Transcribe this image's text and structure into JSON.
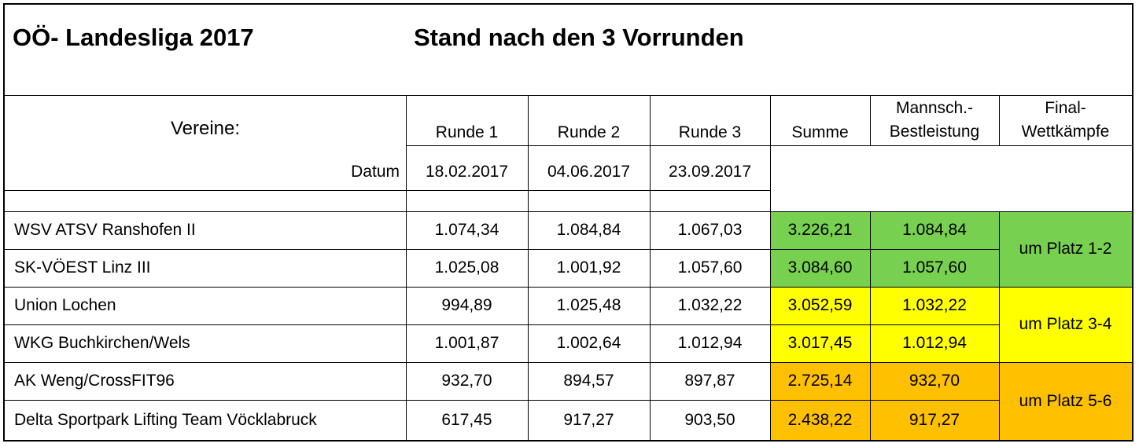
{
  "title": "OÖ- Landesliga 2017",
  "subtitle": "Stand nach den 3 Vorrunden",
  "header": {
    "vereine": "Vereine:",
    "runde1": "Runde 1",
    "runde2": "Runde 2",
    "runde3": "Runde 3",
    "summe": "Summe",
    "mannsch_l1": "Mannsch.-",
    "mannsch_l2": "Bestleistung",
    "final_l1": "Final-",
    "final_l2": "Wettkämpfe",
    "datum_label": "Datum",
    "datum1": "18.02.2017",
    "datum2": "04.06.2017",
    "datum3": "23.09.2017"
  },
  "colors": {
    "green": "#77d04f",
    "yellow": "#ffff00",
    "orange": "#ffc000"
  },
  "rows": [
    {
      "verein": "WSV ATSV Ranshofen II",
      "r1": "1.074,34",
      "r2": "1.084,84",
      "r3": "1.067,03",
      "summe": "3.226,21",
      "best": "1.084,84"
    },
    {
      "verein": "SK-VÖEST Linz III",
      "r1": "1.025,08",
      "r2": "1.001,92",
      "r3": "1.057,60",
      "summe": "3.084,60",
      "best": "1.057,60"
    },
    {
      "verein": "Union Lochen",
      "r1": "994,89",
      "r2": "1.025,48",
      "r3": "1.032,22",
      "summe": "3.052,59",
      "best": "1.032,22"
    },
    {
      "verein": "WKG Buchkirchen/Wels",
      "r1": "1.001,87",
      "r2": "1.002,64",
      "r3": "1.012,94",
      "summe": "3.017,45",
      "best": "1.012,94"
    },
    {
      "verein": "AK Weng/CrossFIT96",
      "r1": "932,70",
      "r2": "894,57",
      "r3": "897,87",
      "summe": "2.725,14",
      "best": "932,70"
    },
    {
      "verein": "Delta Sportpark Lifting Team Vöcklabruck",
      "r1": "617,45",
      "r2": "917,27",
      "r3": "903,50",
      "summe": "2.438,22",
      "best": "917,27"
    }
  ],
  "finals": [
    "um Platz 1-2",
    "um Platz 3-4",
    "um Platz 5-6"
  ]
}
